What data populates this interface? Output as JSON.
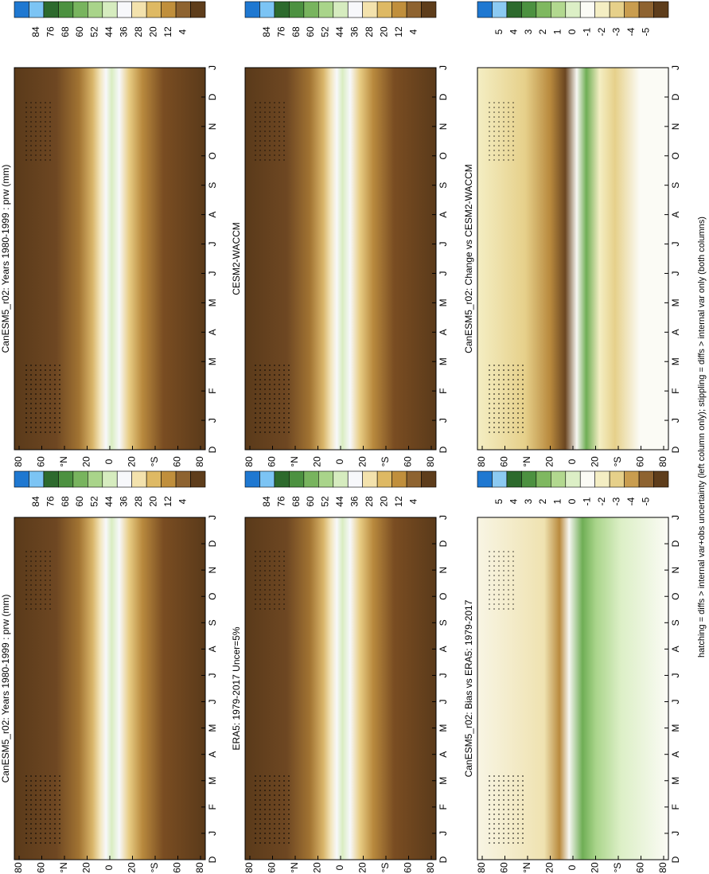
{
  "panels": [
    {
      "title": "CanESM5_r02: Years 1980-1999 : prw (mm)",
      "colorbar": "mean",
      "field": "mean"
    },
    {
      "title": "CanESM5_r02: Years 1980-1999 : prw (mm)",
      "colorbar": "mean",
      "field": "mean"
    },
    {
      "title": "ERA5: 1979-2017 Uncer=5%",
      "colorbar": "mean",
      "field": "mean"
    },
    {
      "title": "CESM2-WACCM",
      "colorbar": "mean",
      "field": "mean"
    },
    {
      "title": "CanESM5_r02: Bias vs ERA5: 1979-2017",
      "colorbar": "diff",
      "field": "bias"
    },
    {
      "title": "CanESM5_r02: Change vs CESM2-WACCM",
      "colorbar": "diff",
      "field": "change"
    }
  ],
  "colorbars": {
    "mean": {
      "labels": [
        "84",
        "76",
        "68",
        "60",
        "52",
        "44",
        "36",
        "28",
        "20",
        "12",
        "4"
      ],
      "colors": [
        "#1f78d1",
        "#7cc4f4",
        "#2d6a2d",
        "#4c9140",
        "#78b45e",
        "#a9d48a",
        "#d6ecbf",
        "#f7f8fb",
        "#f3e2ad",
        "#deb964",
        "#c08f3c",
        "#8e6330",
        "#5e3d1b"
      ]
    },
    "diff": {
      "labels": [
        "5",
        "4",
        "3",
        "2",
        "1",
        "0",
        "-1",
        "-2",
        "-3",
        "-4",
        "-5"
      ],
      "colors": [
        "#1f78d1",
        "#8ccaf2",
        "#2d6a2d",
        "#4c9140",
        "#7fb860",
        "#b2d88f",
        "#dcefc6",
        "#fbfbf5",
        "#f4eec3",
        "#e6d08a",
        "#c99d4f",
        "#8e6330",
        "#5e3d1b"
      ]
    }
  },
  "month_labels": [
    "D",
    "J",
    "F",
    "M",
    "A",
    "M",
    "J",
    "J",
    "A",
    "S",
    "O",
    "N",
    "D",
    "J"
  ],
  "lat_labels": [
    "80",
    "60",
    "°N",
    "20",
    "0",
    "20",
    "°S",
    "60",
    "80"
  ],
  "caption": "hatching = diffs > internal var+obs uncertainty (left column only); stippling = diffs > internal var only (both columns)"
}
